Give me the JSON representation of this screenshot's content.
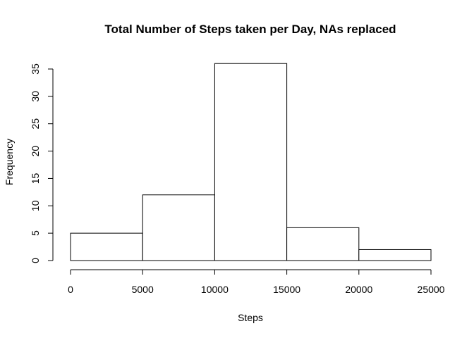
{
  "chart_data": {
    "type": "histogram",
    "title": "Total Number of Steps taken per Day, NAs replaced",
    "xlabel": "Steps",
    "ylabel": "Frequency",
    "bins": [
      {
        "start": 0,
        "end": 5000,
        "count": 5
      },
      {
        "start": 5000,
        "end": 10000,
        "count": 12
      },
      {
        "start": 10000,
        "end": 15000,
        "count": 36
      },
      {
        "start": 15000,
        "end": 20000,
        "count": 6
      },
      {
        "start": 20000,
        "end": 25000,
        "count": 2
      }
    ],
    "xlim": [
      0,
      25000
    ],
    "ylim": [
      0,
      35
    ],
    "xticks": [
      0,
      5000,
      10000,
      15000,
      20000,
      25000
    ],
    "yticks": [
      0,
      5,
      10,
      15,
      20,
      25,
      30,
      35
    ],
    "grid": false,
    "bar_fill": "#ffffff",
    "bar_stroke": "#000000"
  }
}
